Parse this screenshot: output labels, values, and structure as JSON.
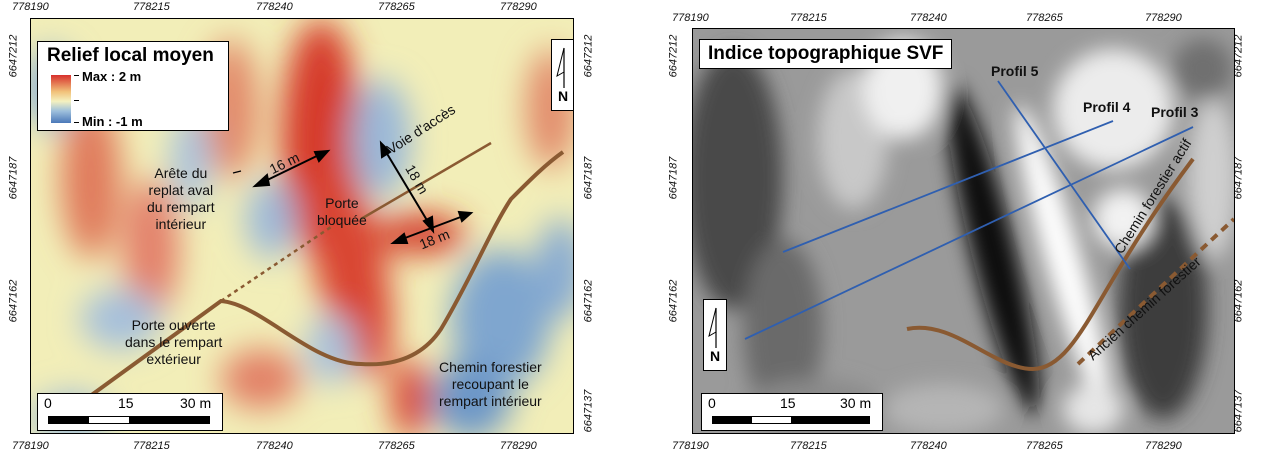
{
  "axes": {
    "x_ticks": [
      "778190",
      "778215",
      "778240",
      "778265",
      "778290"
    ],
    "y_ticks": [
      "6647212",
      "6647187",
      "6647162",
      "6647137"
    ]
  },
  "left_map": {
    "title": "Relief local moyen",
    "legend": {
      "max": "Max : 2 m",
      "min": "Min : -1 m"
    },
    "north": "N",
    "labels": {
      "voie": "Voie d'accès",
      "arete": "Arête du\nreplat aval\ndu rempart\nintérieur",
      "porte_bloquee": "Porte\nbloquée",
      "porte_ouverte": "Porte ouverte\ndans le rempart\nextérieur",
      "chemin": "Chemin forestier\nrecoupant le\nrempart intérieur",
      "dim1": "16 m",
      "dim2": "18 m",
      "dim3": "18 m"
    },
    "scale": [
      "0",
      "15",
      "30 m"
    ]
  },
  "right_map": {
    "title": "Indice topographique SVF",
    "north": "N",
    "profiles": [
      "Profil 5",
      "Profil 4",
      "Profil 3"
    ],
    "labels": {
      "chemin_actif": "Chemin forestier actif",
      "ancien": "Ancien chemin forestier"
    },
    "scale": [
      "0",
      "15",
      "30 m"
    ]
  },
  "colors": {
    "path": "#8a5a32",
    "profile": "#2f5fb0",
    "high": "#d7302c",
    "low": "#4a78b8"
  }
}
